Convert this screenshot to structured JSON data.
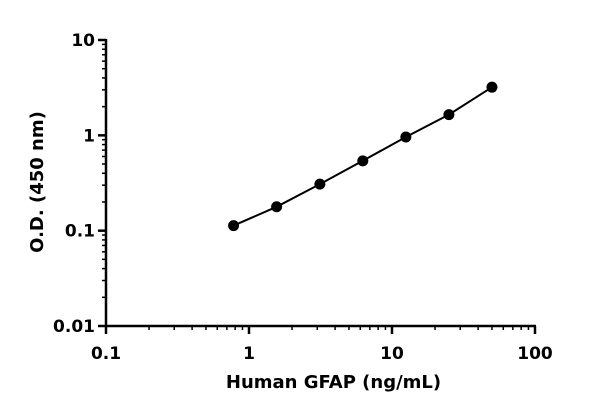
{
  "chart_data": {
    "type": "scatter",
    "title": "",
    "xlabel": "Human GFAP (ng/mL)",
    "ylabel": "O.D. (450 nm)",
    "xscale": "log",
    "yscale": "log",
    "xlim": [
      0.1,
      100
    ],
    "ylim": [
      0.01,
      10
    ],
    "xticks": [
      0.1,
      1,
      10,
      100
    ],
    "xtick_labels": [
      "0.1",
      "1",
      "10",
      "100"
    ],
    "yticks": [
      0.01,
      0.1,
      1,
      10
    ],
    "ytick_labels": [
      "0.01",
      "0.1",
      "1",
      "10"
    ],
    "grid": false,
    "legend": false,
    "fit_line": true,
    "series": [
      {
        "x": [
          0.78,
          1.56,
          3.13,
          6.25,
          12.5,
          25,
          50
        ],
        "y": [
          0.113,
          0.178,
          0.308,
          0.54,
          0.96,
          1.65,
          3.2
        ]
      }
    ],
    "colors": {
      "marker": "#000000",
      "line": "#000000",
      "axis": "#000000"
    }
  }
}
